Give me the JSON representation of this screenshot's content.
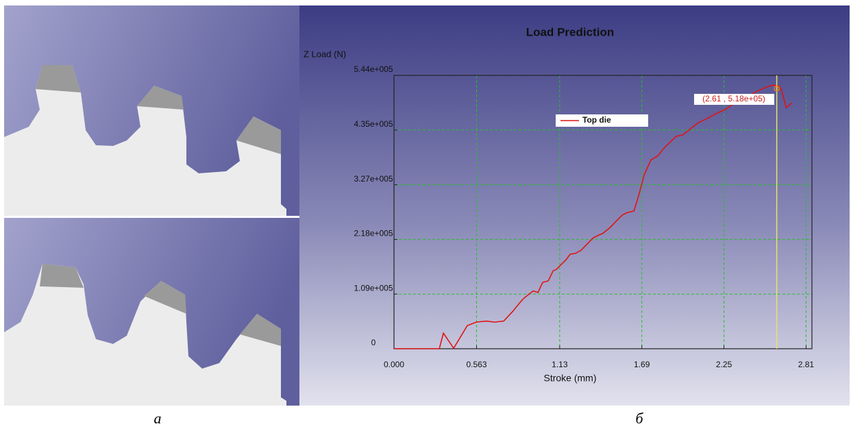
{
  "chart_data": {
    "type": "line",
    "title": "Load Prediction",
    "x_label": "Stroke (mm)",
    "y_label": "Z Load (N)",
    "xlim": [
      0,
      2.85
    ],
    "ylim": [
      0,
      544000
    ],
    "xticks": [
      {
        "value": 0,
        "label": "0.000"
      },
      0.563,
      1.13,
      1.69,
      2.25,
      2.81
    ],
    "yticks": [
      0,
      {
        "value": 108800,
        "label": "1.09e+005"
      },
      {
        "value": 217600,
        "label": "2.18e+005"
      },
      {
        "value": 326400,
        "label": "3.27e+005"
      },
      {
        "value": 435200,
        "label": "4.35e+005"
      },
      {
        "value": 544000,
        "label": "5.44e+005"
      }
    ],
    "grid": true,
    "x": [
      0,
      0.309,
      0.337,
      0.407,
      0.5,
      0.561,
      0.631,
      0.687,
      0.748,
      0.809,
      0.865,
      0.888,
      0.949,
      0.982,
      1.014,
      1.052,
      1.085,
      1.108,
      1.145,
      1.173,
      1.201,
      1.239,
      1.276,
      1.309,
      1.356,
      1.388,
      1.426,
      1.473,
      1.519,
      1.557,
      1.59,
      1.636,
      1.669,
      1.706,
      1.753,
      1.8,
      1.847,
      1.893,
      1.926,
      1.968,
      2.01,
      2.071,
      2.127,
      2.197,
      2.258,
      2.314,
      2.384,
      2.454,
      2.51,
      2.571,
      2.618,
      2.641,
      2.674,
      2.688,
      2.712
    ],
    "series": [
      {
        "name": "Top die",
        "color": "#e01414",
        "values": [
          0,
          0,
          31000,
          1000,
          46000,
          53000,
          55000,
          53000,
          55000,
          74000,
          94000,
          101000,
          115000,
          112000,
          132000,
          135000,
          155000,
          158000,
          169000,
          177000,
          188000,
          190000,
          196000,
          206000,
          220000,
          225000,
          230000,
          241000,
          255000,
          266000,
          271000,
          274000,
          305000,
          346000,
          376000,
          384000,
          401000,
          414000,
          423000,
          425000,
          435000,
          449000,
          457000,
          468000,
          476000,
          487000,
          496000,
          509000,
          517000,
          524000,
          524000,
          517000,
          480000,
          483000,
          489000
        ]
      }
    ],
    "cursor": {
      "x": 2.61,
      "y": 518000,
      "label": "(2.61 , 5.18e+05)"
    }
  },
  "panel_labels": [
    "а",
    "б"
  ]
}
